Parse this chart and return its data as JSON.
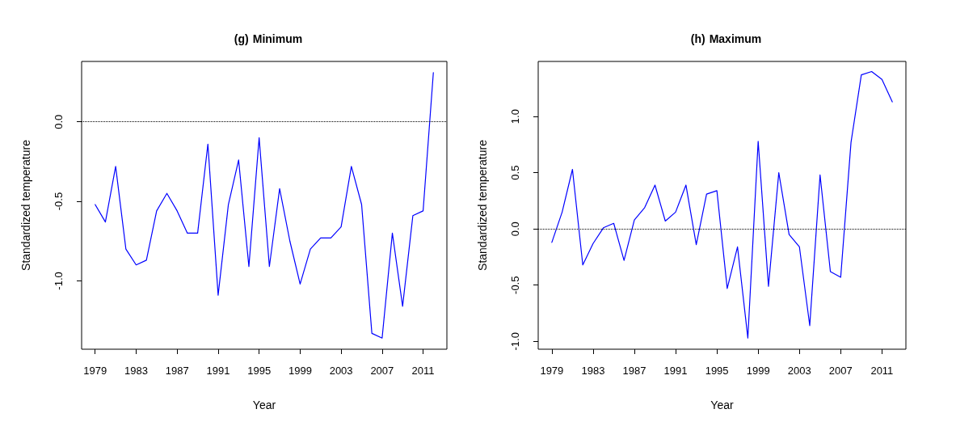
{
  "chart_data": [
    {
      "type": "line",
      "title": "(g) Minimum",
      "xlabel": "Year",
      "ylabel": "Standardized temperature",
      "x": [
        1979,
        1980,
        1981,
        1982,
        1983,
        1984,
        1985,
        1986,
        1987,
        1988,
        1989,
        1990,
        1991,
        1992,
        1993,
        1994,
        1995,
        1996,
        1997,
        1998,
        1999,
        2000,
        2001,
        2002,
        2003,
        2004,
        2005,
        2006,
        2007,
        2008,
        2009,
        2010,
        2011,
        2012
      ],
      "series": [
        {
          "color": "#0000ff",
          "values": [
            -0.52,
            -0.63,
            -0.28,
            -0.8,
            -0.9,
            -0.87,
            -0.56,
            -0.45,
            -0.56,
            -0.7,
            -0.7,
            -0.14,
            -1.09,
            -0.52,
            -0.24,
            -0.91,
            -0.1,
            -0.91,
            -0.42,
            -0.75,
            -1.02,
            -0.8,
            -0.73,
            -0.73,
            -0.66,
            -0.28,
            -0.52,
            -1.33,
            -1.36,
            -0.7,
            -1.16,
            -0.59,
            -0.56,
            0.31
          ]
        }
      ],
      "xlim": [
        1977.68,
        2013.32
      ],
      "xticks": [
        1979,
        1983,
        1987,
        1991,
        1995,
        1999,
        2003,
        2007,
        2011
      ],
      "ylim": [
        -1.43,
        0.38
      ],
      "yticks": [
        {
          "value": -1.0,
          "label": "-1.0"
        },
        {
          "value": -0.5,
          "label": "-0.5"
        },
        {
          "value": 0,
          "label": "0.0"
        }
      ],
      "ref_lines": [
        {
          "axis": "y",
          "value": 0,
          "color": "#000000",
          "line_style": "dotted"
        }
      ],
      "grid": false,
      "marker": "none",
      "line_style": "solid"
    },
    {
      "type": "line",
      "title": "(h) Maximum",
      "xlabel": "Year",
      "ylabel": "Standardized temperature",
      "x": [
        1979,
        1980,
        1981,
        1982,
        1983,
        1984,
        1985,
        1986,
        1987,
        1988,
        1989,
        1990,
        1991,
        1992,
        1993,
        1994,
        1995,
        1996,
        1997,
        1998,
        1999,
        2000,
        2001,
        2002,
        2003,
        2004,
        2005,
        2006,
        2007,
        2008,
        2009,
        2010,
        2011,
        2012
      ],
      "series": [
        {
          "color": "#0000ff",
          "values": [
            -0.12,
            0.15,
            0.53,
            -0.32,
            -0.13,
            0.01,
            0.05,
            -0.28,
            0.08,
            0.19,
            0.39,
            0.07,
            0.15,
            0.39,
            -0.14,
            0.31,
            0.34,
            -0.53,
            -0.16,
            -0.97,
            0.78,
            -0.51,
            0.5,
            -0.05,
            -0.16,
            -0.86,
            0.48,
            -0.38,
            -0.43,
            0.77,
            1.37,
            1.4,
            1.33,
            1.13
          ]
        }
      ],
      "xlim": [
        1977.68,
        2013.32
      ],
      "xticks": [
        1979,
        1983,
        1987,
        1991,
        1995,
        1999,
        2003,
        2007,
        2011
      ],
      "ylim": [
        -1.07,
        1.49
      ],
      "yticks": [
        {
          "value": -1.0,
          "label": "-1.0"
        },
        {
          "value": -0.5,
          "label": "-0.5"
        },
        {
          "value": 0,
          "label": "0.0"
        },
        {
          "value": 0.5,
          "label": "0.5"
        },
        {
          "value": 1.0,
          "label": "1.0"
        }
      ],
      "ref_lines": [
        {
          "axis": "y",
          "value": 0,
          "color": "#000000",
          "line_style": "dotted"
        }
      ],
      "grid": false,
      "marker": "none",
      "line_style": "solid"
    }
  ]
}
